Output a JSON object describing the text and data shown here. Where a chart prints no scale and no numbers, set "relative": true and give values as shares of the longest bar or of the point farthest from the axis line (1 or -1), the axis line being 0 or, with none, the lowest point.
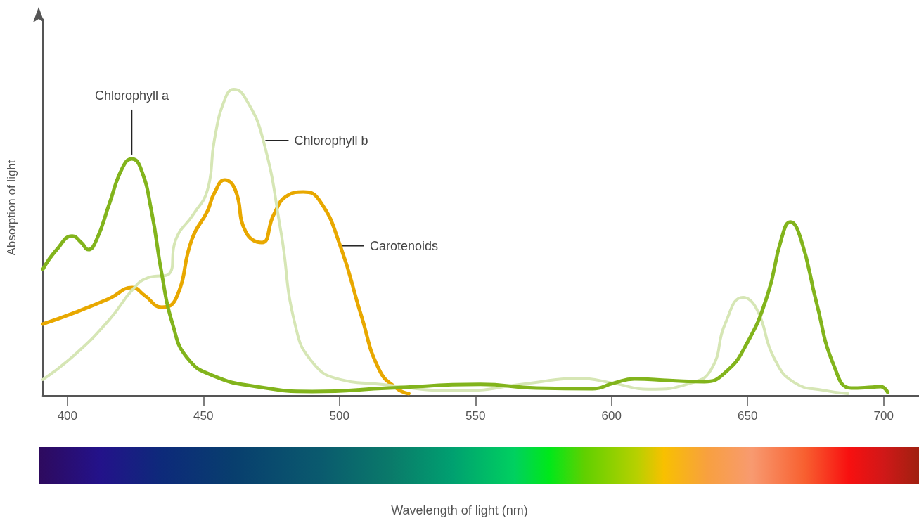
{
  "chart_data": {
    "type": "line",
    "annotations": [
      "Wavelength of light (nm)"
    ],
    "ylabel": "Absorption of light",
    "relative": true,
    "xlim": [
      391,
      713
    ],
    "xticks": [
      400,
      450,
      500,
      550,
      600,
      650,
      700
    ],
    "marker": "none",
    "line_style": "solid",
    "grid": false,
    "legend": false,
    "series": [
      {
        "name": "Chlorophyll a",
        "color": "#82b41c",
        "x": [
          391,
          396.1,
          401.8,
          405.1,
          407.7,
          410.8,
          415.4,
          420.1,
          423.7,
          427.0,
          430.9,
          434.7,
          438.6,
          444.2,
          454,
          469.5,
          490,
          518.3,
          551.8,
          572.4,
          593,
          600.7,
          608.4,
          621.3,
          634.1,
          641.8,
          649.5,
          657.3,
          662.4,
          665.7,
          669.6,
          675.3,
          681.7,
          688.1,
          695.9,
          699,
          701.5
        ],
        "values": [
          0.413,
          0.477,
          0.521,
          0.5,
          0.477,
          0.511,
          0.626,
          0.741,
          0.773,
          0.741,
          0.603,
          0.397,
          0.236,
          0.122,
          0.064,
          0.03,
          0.014,
          0.025,
          0.037,
          0.025,
          0.023,
          0.041,
          0.055,
          0.05,
          0.046,
          0.076,
          0.167,
          0.328,
          0.511,
          0.567,
          0.511,
          0.305,
          0.099,
          0.025,
          0.028,
          0.03,
          0.011
        ]
      },
      {
        "name": "Chlorophyll b",
        "color": "#d6e6b5",
        "x": [
          391,
          402.6,
          415.4,
          424.4,
          429.6,
          437.3,
          439.9,
          446.3,
          451.5,
          454,
          457.9,
          461.2,
          465.6,
          472,
          478.5,
          483.6,
          490,
          500.3,
          513.2,
          544.1,
          569.8,
          587.8,
          600.7,
          613.5,
          629,
          636.7,
          641.8,
          648.3,
          653.4,
          659.8,
          667.6,
          677.8,
          686.9
        ],
        "values": [
          0.053,
          0.133,
          0.248,
          0.351,
          0.385,
          0.397,
          0.511,
          0.592,
          0.672,
          0.833,
          0.968,
          1,
          0.968,
          0.833,
          0.534,
          0.236,
          0.11,
          0.053,
          0.039,
          0.016,
          0.041,
          0.057,
          0.041,
          0.021,
          0.041,
          0.087,
          0.236,
          0.321,
          0.282,
          0.122,
          0.041,
          0.018,
          0.007
        ]
      },
      {
        "name": "Carotenoids",
        "color": "#e8a800",
        "x": [
          391,
          402.6,
          415.4,
          423.9,
          428.3,
          434.7,
          439.9,
          445.8,
          451.5,
          454,
          457.9,
          461.7,
          465.6,
          471.5,
          475.9,
          481,
          486.7,
          492.6,
          500.3,
          508.1,
          514.5,
          520.9,
          525.5
        ],
        "values": [
          0.234,
          0.271,
          0.317,
          0.353,
          0.328,
          0.289,
          0.317,
          0.511,
          0.603,
          0.661,
          0.704,
          0.672,
          0.534,
          0.5,
          0.592,
          0.654,
          0.665,
          0.638,
          0.489,
          0.259,
          0.087,
          0.025,
          0.007
        ]
      }
    ]
  }
}
